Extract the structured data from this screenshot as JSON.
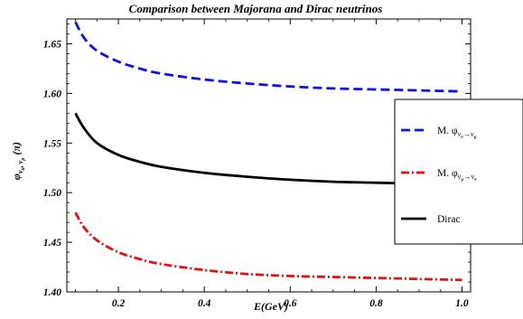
{
  "chart_data": {
    "type": "line",
    "title": "Comparison between Majorana and Dirac neutrinos",
    "xlabel": "E(GeV)",
    "ylabel": {
      "main": "φ",
      "sub": "ν",
      "subsub": "α",
      "sub2": ", ν",
      "subsub2": "ρ",
      "unit": " (π)"
    },
    "xlim": [
      0.08,
      1.02
    ],
    "ylim": [
      1.4,
      1.675
    ],
    "x_ticks": [
      0.2,
      0.4,
      0.6,
      0.8,
      1.0
    ],
    "x_tick_labels": [
      "0.2",
      "0.4",
      "0.6",
      "0.8",
      "1.0"
    ],
    "y_ticks": [
      1.4,
      1.45,
      1.5,
      1.55,
      1.6,
      1.65
    ],
    "y_tick_labels": [
      "1.40",
      "1.45",
      "1.50",
      "1.55",
      "1.60",
      "1.65"
    ],
    "grid": false,
    "legend_position": "right",
    "series": [
      {
        "name": {
          "pre": "M. φ",
          "s1": "ν",
          "s1sub": "e",
          "arrow": "→",
          "s2": "ν",
          "s2sub": "μ"
        },
        "color": "#1010e6",
        "style": "dashed",
        "x": [
          0.1,
          0.12,
          0.15,
          0.2,
          0.25,
          0.3,
          0.4,
          0.5,
          0.6,
          0.7,
          0.8,
          0.9,
          1.0
        ],
        "y": [
          1.672,
          1.656,
          1.643,
          1.632,
          1.625,
          1.62,
          1.614,
          1.61,
          1.607,
          1.605,
          1.604,
          1.603,
          1.602
        ]
      },
      {
        "name": {
          "pre": "M. φ",
          "s1": "ν",
          "s1sub": "μ",
          "arrow": "→",
          "s2": "ν",
          "s2sub": "e"
        },
        "color": "#e61010",
        "style": "dashdot",
        "x": [
          0.1,
          0.12,
          0.15,
          0.2,
          0.25,
          0.3,
          0.4,
          0.5,
          0.6,
          0.7,
          0.8,
          0.9,
          1.0
        ],
        "y": [
          1.48,
          1.465,
          1.452,
          1.44,
          1.433,
          1.428,
          1.422,
          1.418,
          1.416,
          1.415,
          1.414,
          1.413,
          1.412
        ]
      },
      {
        "name": {
          "pre": "Dirac",
          "s1": "",
          "s1sub": "",
          "arrow": "",
          "s2": "",
          "s2sub": ""
        },
        "color": "#000000",
        "style": "solid",
        "x": [
          0.1,
          0.12,
          0.15,
          0.2,
          0.25,
          0.3,
          0.4,
          0.5,
          0.6,
          0.7,
          0.8,
          0.9,
          1.0
        ],
        "y": [
          1.58,
          1.565,
          1.55,
          1.538,
          1.531,
          1.526,
          1.52,
          1.516,
          1.513,
          1.511,
          1.51,
          1.509,
          1.508
        ]
      }
    ]
  }
}
